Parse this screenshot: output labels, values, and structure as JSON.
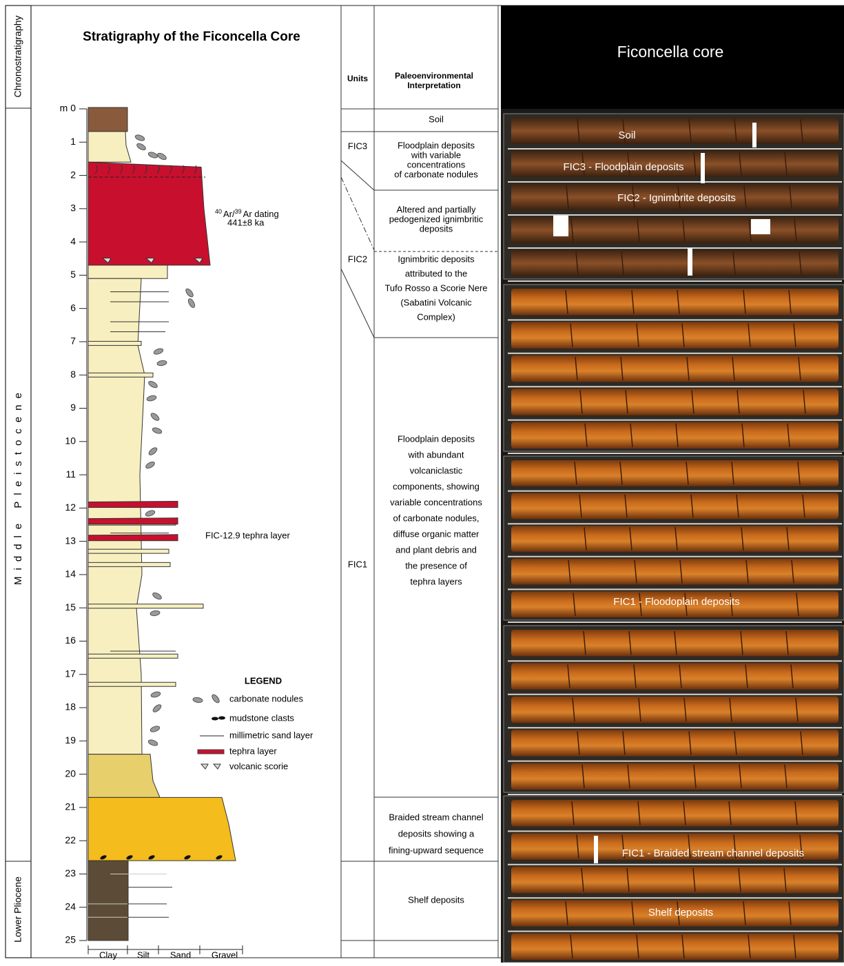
{
  "chronostratigraphy": {
    "header": "Chronostratigraphy",
    "periods": [
      "Middle Pleistocene",
      "Lower Pliocene"
    ]
  },
  "log": {
    "title": "Stratigraphy of the Ficoncella Core",
    "depth_labels": [
      "m 0",
      "1",
      "2",
      "3",
      "4",
      "5",
      "6",
      "7",
      "8",
      "9",
      "10",
      "11",
      "12",
      "13",
      "14",
      "15",
      "16",
      "17",
      "18",
      "19",
      "20",
      "21",
      "22",
      "23",
      "24",
      "25"
    ],
    "grain_sizes": [
      "Clay",
      "Silt",
      "Sand",
      "Gravel"
    ],
    "dating": {
      "isotope_1": "40",
      "element_1": "Ar/",
      "isotope_2": "39",
      "element_2": "Ar dating",
      "age": "441±8 ka"
    },
    "tephra_annotation": "FIC-12.9 tephra layer",
    "legend": {
      "title": "LEGEND",
      "items": [
        "carbonate nodules",
        "mudstone clasts",
        "millimetric sand layer",
        "tephra layer",
        "volcanic scorie"
      ]
    }
  },
  "table": {
    "headers": {
      "units": "Units",
      "interpretation": [
        "Paleoenvironmental",
        "Interpretation"
      ]
    },
    "units": [
      "FIC3",
      "FIC2",
      "FIC1"
    ],
    "rows": [
      {
        "lines": [
          "Soil"
        ]
      },
      {
        "lines": [
          "Floodplain deposits",
          "with variable",
          "concentrations",
          "of carbonate nodules"
        ]
      },
      {
        "lines": [
          "Altered and partially",
          "pedogenized ignimbritic",
          "deposits"
        ]
      },
      {
        "lines": [
          "Ignimbritic deposits",
          "attributed to the",
          "Tufo Rosso a Scorie Nere",
          "(Sabatini Volcanic",
          "Complex)"
        ]
      },
      {
        "lines": [
          "Floodplain deposits",
          "with abundant",
          "volcaniclastic",
          "components, showing",
          "variable concentrations",
          "of carbonate nodules,",
          "diffuse organic matter",
          "and plant debris and",
          "the presence of",
          "tephra layers"
        ]
      },
      {
        "lines": [
          "Braided stream channel",
          "deposits showing a",
          "fining-upward sequence"
        ]
      },
      {
        "lines": [
          "Shelf deposits"
        ]
      }
    ]
  },
  "photo": {
    "title": "Ficoncella core",
    "labels": [
      "Soil",
      "FIC3 - Floodplain deposits",
      "FIC2 - Ignimbrite deposits",
      "FIC1 - Floodoplain deposits",
      "FIC1 - Braided stream channel deposits",
      "Shelf deposits"
    ]
  }
}
